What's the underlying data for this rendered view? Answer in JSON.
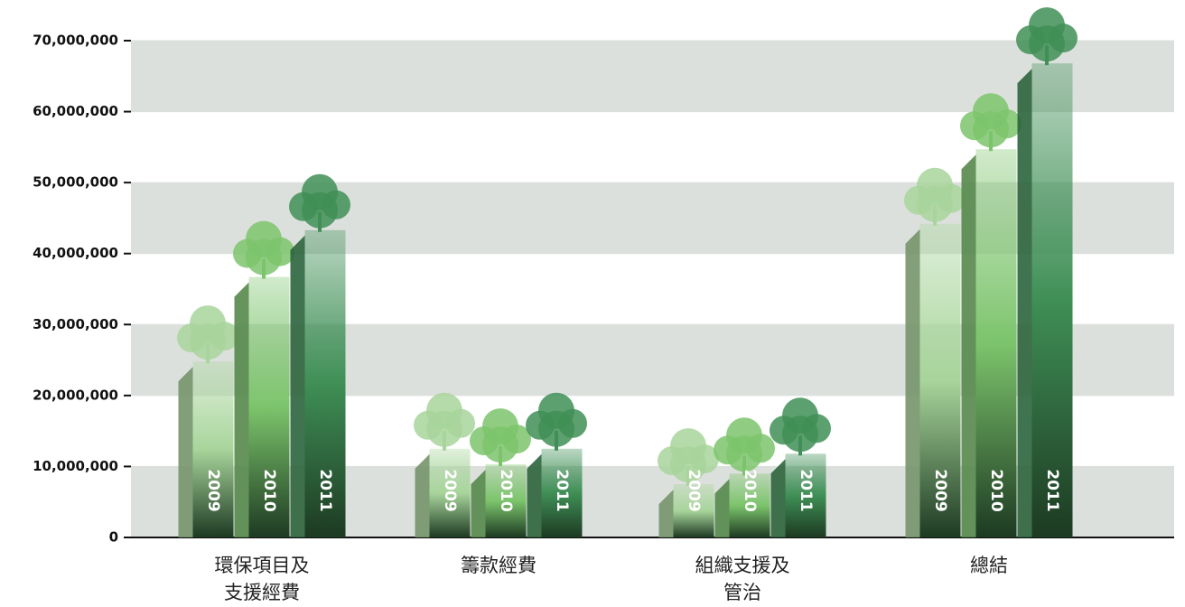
{
  "chart_data": {
    "type": "bar",
    "categories": [
      "環保項目及支援經費",
      "籌款經費",
      "組織支援及管治",
      "總結"
    ],
    "series": [
      {
        "name": "2009",
        "color": "#a8d59b",
        "values": [
          24800000,
          12500000,
          7500000,
          44200000
        ]
      },
      {
        "name": "2010",
        "color": "#7cc46c",
        "values": [
          36700000,
          10300000,
          9000000,
          54700000
        ]
      },
      {
        "name": "2011",
        "color": "#3f8f56",
        "values": [
          43300000,
          12500000,
          11800000,
          66800000
        ]
      }
    ],
    "ylim": [
      0,
      70000000
    ],
    "yticks": [
      {
        "value": 0,
        "label": "0"
      },
      {
        "value": 10000000,
        "label": "10,000,000"
      },
      {
        "value": 20000000,
        "label": "20,000,000"
      },
      {
        "value": 30000000,
        "label": "30,000,000"
      },
      {
        "value": 40000000,
        "label": "40,000,000"
      },
      {
        "value": 50000000,
        "label": "50,000,000"
      },
      {
        "value": 60000000,
        "label": "60,000,000"
      },
      {
        "value": 70000000,
        "label": "70,000,000"
      }
    ],
    "grid": true
  }
}
